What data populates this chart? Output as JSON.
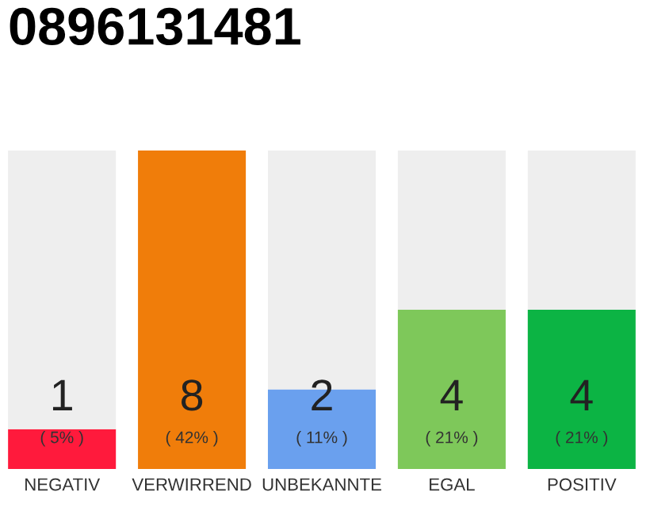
{
  "chart_data": {
    "type": "bar",
    "title": "0896131481",
    "stacked": true,
    "grid": false,
    "legend": false,
    "categories": [
      "NEGATIV",
      "VERWIRREND",
      "UNBEKANNTE",
      "EGAL",
      "POSITIV"
    ],
    "series": [
      {
        "colors": [
          "#ff1a3c",
          "#f07d0a",
          "#6aa0ee",
          "#7ec85a",
          "#0cb444"
        ],
        "values": [
          1,
          8,
          2,
          4,
          4
        ],
        "value_labels": [
          "1",
          "8",
          "2",
          "4",
          "4"
        ]
      },
      {
        "color": "#eeeeee",
        "values": [
          7,
          0,
          6,
          4,
          4
        ],
        "value_labels": [
          null,
          null,
          null,
          null,
          null
        ]
      }
    ],
    "annotations": [
      "( 5% )",
      "( 42% )",
      "( 11% )",
      "( 21% )",
      "( 21% )"
    ]
  }
}
